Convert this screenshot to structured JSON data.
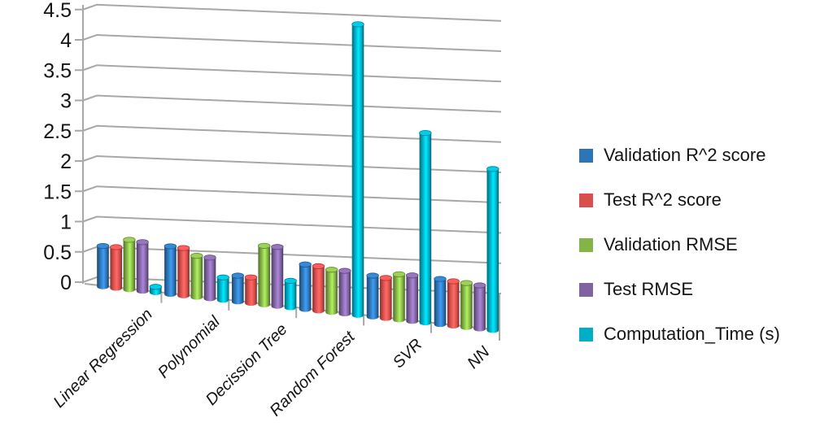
{
  "chart_data": {
    "type": "bar",
    "variant": "3d-cylinder",
    "title": "",
    "xlabel": "",
    "ylabel": "",
    "categories": [
      "Linear Regression",
      "Polynomial",
      "Decission Tree",
      "Random Forest",
      "SVR",
      "NN"
    ],
    "series": [
      {
        "name": "Validation R^2 score",
        "color": "#2E75B6",
        "values": [
          0.52,
          0.56,
          0.12,
          0.35,
          0.21,
          0.2
        ]
      },
      {
        "name": "Test R^2 score",
        "color": "#D94F4C",
        "values": [
          0.51,
          0.54,
          0.1,
          0.33,
          0.18,
          0.17
        ]
      },
      {
        "name": "Validation RMSE",
        "color": "#84B347",
        "values": [
          0.64,
          0.42,
          0.63,
          0.28,
          0.25,
          0.15
        ]
      },
      {
        "name": "Test RMSE",
        "color": "#8064A2",
        "values": [
          0.61,
          0.4,
          0.62,
          0.27,
          0.24,
          0.12
        ]
      },
      {
        "name": "Computation_Time (s)",
        "color": "#00AEC6",
        "values": [
          0.02,
          0.08,
          0.07,
          4.35,
          2.6,
          2.05
        ]
      }
    ],
    "ylim": [
      0,
      4.5
    ],
    "ytick_step": 0.5,
    "yticks": [
      "0",
      "0.5",
      "1",
      "1.5",
      "2",
      "2.5",
      "3",
      "3.5",
      "4",
      "4.5"
    ],
    "grid": true,
    "legend_position": "right",
    "gridline_color": "#A8A8A8",
    "text_color": "#141414"
  }
}
